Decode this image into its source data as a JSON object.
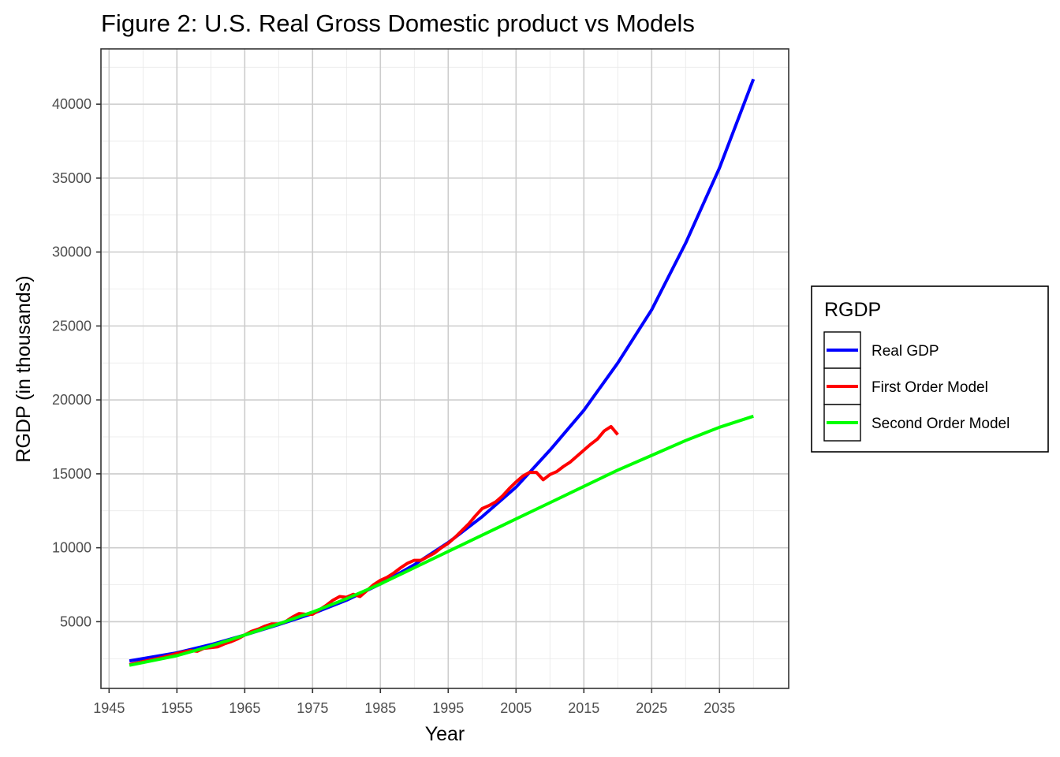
{
  "chart_data": {
    "type": "line",
    "title": "Figure 2: U.S. Real Gross Domestic product vs Models",
    "xlabel": "Year",
    "ylabel": "RGDP (in thousands)",
    "xlim": [
      1943.8,
      2045.2
    ],
    "ylim": [
      488,
      43740
    ],
    "x_ticks": [
      1945,
      1955,
      1965,
      1975,
      1985,
      1995,
      2005,
      2015,
      2025,
      2035
    ],
    "y_ticks": [
      5000,
      10000,
      15000,
      20000,
      25000,
      30000,
      35000,
      40000
    ],
    "grid": true,
    "legend": {
      "title": "RGDP",
      "position": "right"
    },
    "series": [
      {
        "name": "Real GDP",
        "color": "#0000FF",
        "x": [
          1948,
          1955,
          1960,
          1965,
          1970,
          1975,
          1980,
          1985,
          1990,
          1995,
          2000,
          2005,
          2010,
          2015,
          2020,
          2025,
          2030,
          2035,
          2040
        ],
        "y": [
          2350,
          2900,
          3450,
          4100,
          4800,
          5550,
          6450,
          7550,
          8850,
          10350,
          12100,
          14100,
          16600,
          19300,
          22500,
          26100,
          30600,
          35700,
          41700
        ]
      },
      {
        "name": "First Order Model",
        "color": "#FF0000",
        "x": [
          1948,
          1950,
          1953,
          1955,
          1956,
          1957,
          1958,
          1959,
          1960,
          1961,
          1962,
          1963,
          1964,
          1965,
          1966,
          1967,
          1968,
          1969,
          1970,
          1971,
          1972,
          1973,
          1974,
          1975,
          1976,
          1977,
          1978,
          1979,
          1980,
          1981,
          1982,
          1983,
          1984,
          1985,
          1986,
          1987,
          1988,
          1989,
          1990,
          1991,
          1992,
          1993,
          1994,
          1995,
          1996,
          1997,
          1998,
          1999,
          2000,
          2001,
          2002,
          2003,
          2004,
          2005,
          2006,
          2007,
          2008,
          2009,
          2010,
          2011,
          2012,
          2013,
          2014,
          2015,
          2016,
          2017,
          2018,
          2019,
          2020
        ],
        "y": [
          2100,
          2300,
          2600,
          2850,
          2950,
          3050,
          3000,
          3200,
          3250,
          3300,
          3500,
          3650,
          3850,
          4100,
          4350,
          4500,
          4700,
          4850,
          4850,
          5000,
          5300,
          5550,
          5500,
          5500,
          5800,
          6100,
          6450,
          6700,
          6650,
          6850,
          6700,
          7100,
          7500,
          7800,
          8000,
          8300,
          8650,
          8950,
          9150,
          9150,
          9400,
          9650,
          10000,
          10300,
          10700,
          11150,
          11600,
          12150,
          12650,
          12850,
          13100,
          13500,
          14000,
          14450,
          14850,
          15100,
          15100,
          14600,
          14950,
          15150,
          15500,
          15800,
          16200,
          16600,
          17000,
          17350,
          17900,
          18200,
          17650
        ]
      },
      {
        "name": "Second Order Model",
        "color": "#00FF00",
        "x": [
          1948,
          1955,
          1960,
          1965,
          1970,
          1975,
          1980,
          1985,
          1990,
          1995,
          2000,
          2005,
          2010,
          2015,
          2020,
          2025,
          2030,
          2035,
          2040
        ],
        "y": [
          2050,
          2700,
          3350,
          4100,
          4850,
          5650,
          6550,
          7550,
          8650,
          9750,
          10850,
          11950,
          13050,
          14150,
          15250,
          16250,
          17250,
          18150,
          18900
        ]
      }
    ]
  }
}
